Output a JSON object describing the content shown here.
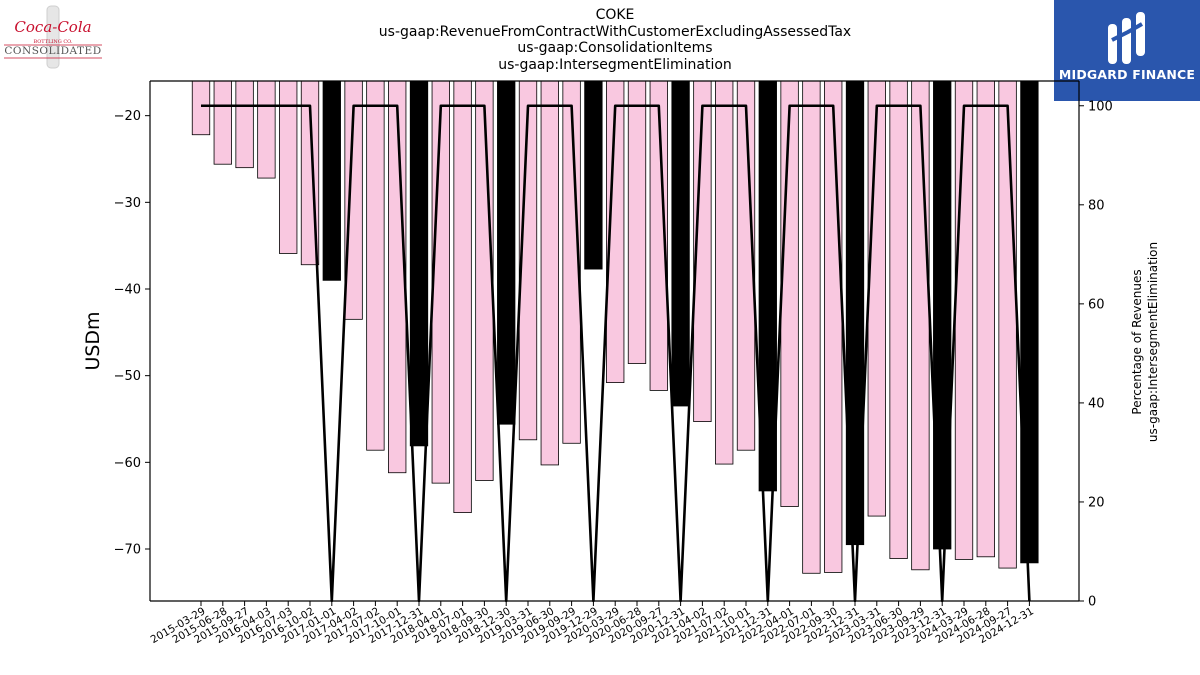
{
  "title": {
    "line1": "COKE",
    "line2": "us-gaap:RevenueFromContractWithCustomerExcludingAssessedTax",
    "line3": "us-gaap:ConsolidationItems",
    "line4": "us-gaap:IntersegmentElimination"
  },
  "logos": {
    "left": {
      "name": "Coca-Cola Consolidated",
      "script_text": "Coca-Cola",
      "sub_text": "BOTTLING CO.",
      "wordmark": "CONSOLIDATED",
      "brand_color": "#c8102e"
    },
    "right": {
      "name": "Midgard Finance",
      "text": "MIDGARD FINANCE",
      "bg_color": "#2a56ad"
    }
  },
  "colors": {
    "bar_fill": "#f9c8e0",
    "bar_highlight": "#000000",
    "line": "#000000"
  },
  "chart_data": {
    "type": "bar",
    "xlabel": "",
    "ylabel": "USDm",
    "y2label": [
      "Percentage of Revenues",
      "us-gaap:IntersegmentElimination"
    ],
    "ylim": [
      -76,
      -16
    ],
    "y2lim": [
      0,
      105
    ],
    "yticks": [
      -20,
      -30,
      -40,
      -50,
      -60,
      -70
    ],
    "y2ticks": [
      0,
      20,
      40,
      60,
      80,
      100
    ],
    "grid": false,
    "categories": [
      "2015-03-29",
      "2015-06-28",
      "2015-09-27",
      "2016-04-03",
      "2016-07-03",
      "2016-10-02",
      "2017-01-01",
      "2017-04-02",
      "2017-07-02",
      "2017-10-01",
      "2017-12-31",
      "2018-04-01",
      "2018-07-01",
      "2018-09-30",
      "2018-12-30",
      "2019-03-31",
      "2019-06-30",
      "2019-09-29",
      "2019-12-29",
      "2020-03-29",
      "2020-06-28",
      "2020-09-27",
      "2020-12-31",
      "2021-04-02",
      "2021-07-02",
      "2021-10-01",
      "2021-12-31",
      "2022-04-01",
      "2022-07-01",
      "2022-09-30",
      "2022-12-31",
      "2023-03-31",
      "2023-06-30",
      "2023-09-29",
      "2023-12-31",
      "2024-03-29",
      "2024-06-28",
      "2024-09-27",
      "2024-12-31"
    ],
    "values": [
      -22.2,
      -25.6,
      -26.0,
      -27.2,
      -35.9,
      -37.2,
      -39.0,
      -43.5,
      -58.6,
      -61.2,
      -58.1,
      -62.4,
      -65.8,
      -62.1,
      -55.6,
      -57.4,
      -60.3,
      -57.8,
      -37.7,
      -50.8,
      -48.6,
      -51.7,
      -53.5,
      -55.3,
      -60.2,
      -58.6,
      -63.3,
      -65.1,
      -72.8,
      -72.7,
      -69.5,
      -66.2,
      -71.1,
      -72.4,
      -70.0,
      -71.2,
      -70.9,
      -72.2,
      -71.6
    ],
    "annual": [
      false,
      false,
      false,
      false,
      false,
      false,
      true,
      false,
      false,
      false,
      true,
      false,
      false,
      false,
      true,
      false,
      false,
      false,
      true,
      false,
      false,
      false,
      true,
      false,
      false,
      false,
      true,
      false,
      false,
      false,
      true,
      false,
      false,
      false,
      true,
      false,
      false,
      false,
      true
    ],
    "series": [
      {
        "name": "Percentage of Revenues",
        "axis": "right",
        "values": [
          100,
          100,
          100,
          100,
          100,
          100,
          0,
          100,
          100,
          100,
          0,
          100,
          100,
          100,
          0,
          100,
          100,
          100,
          0,
          100,
          100,
          100,
          0,
          100,
          100,
          100,
          0,
          100,
          100,
          100,
          0,
          100,
          100,
          100,
          0,
          100,
          100,
          100,
          0
        ]
      }
    ]
  }
}
